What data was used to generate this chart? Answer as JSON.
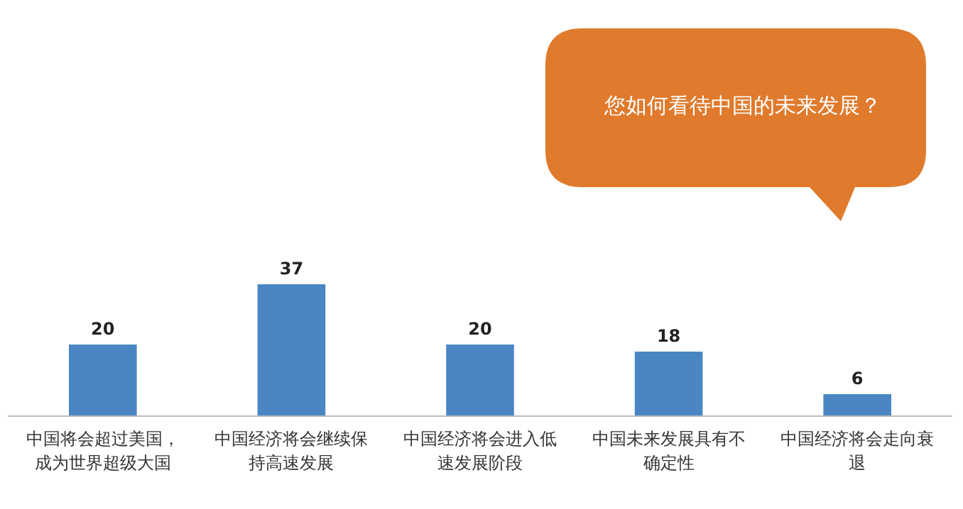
{
  "chart_data": {
    "type": "bar",
    "title": "您如何看待中国的未来发展？",
    "categories": [
      "中国将会超过美国，成为世界超级大国",
      "中国经济将会继续保持高速发展",
      "中国经济将会进入低速发展阶段",
      "中国未来发展具有不确定性",
      "中国经济将会走向衰退"
    ],
    "values": [
      20,
      37,
      20,
      18,
      6
    ],
    "color": "#4a86c4",
    "data_labels": true
  }
}
